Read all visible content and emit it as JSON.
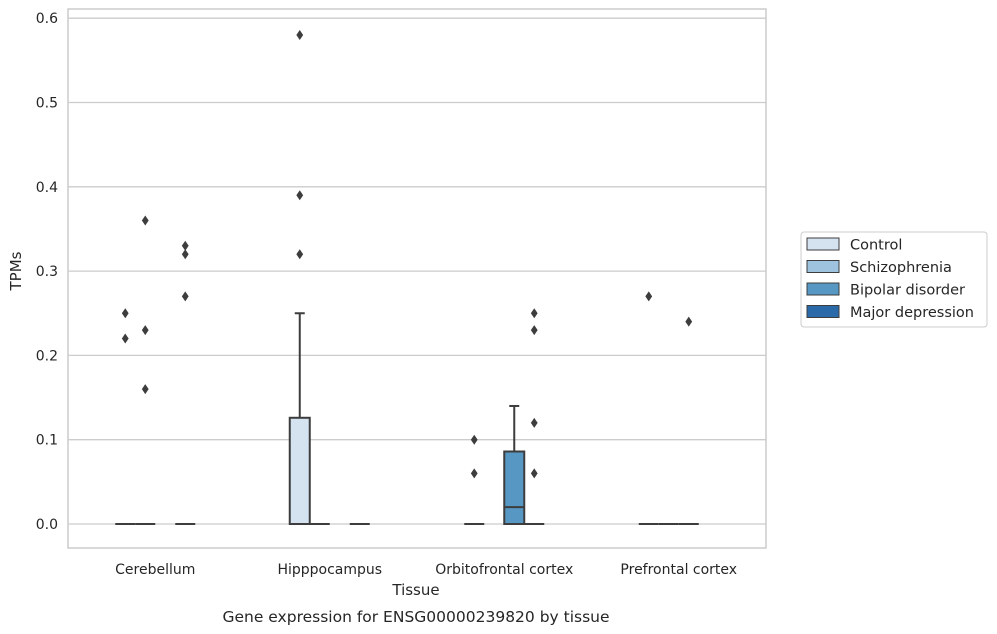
{
  "chart_data": {
    "type": "box",
    "xlabel": "Tissue",
    "ylabel": "TPMs",
    "caption": "Gene expression for ENSG00000239820 by tissue",
    "ylim": [
      -0.029,
      0.61
    ],
    "yticks": [
      "0.0",
      "0.1",
      "0.2",
      "0.3",
      "0.4",
      "0.5",
      "0.6"
    ],
    "grid": "horizontal",
    "legend_position": "right",
    "categories": [
      "Cerebellum",
      "Hipppocampus",
      "Orbitofrontal cortex",
      "Prefrontal cortex"
    ],
    "series": [
      {
        "name": "Control",
        "color": "#d5e3f1"
      },
      {
        "name": "Schizophrenia",
        "color": "#9dc3de"
      },
      {
        "name": "Bipolar disorder",
        "color": "#5697c4"
      },
      {
        "name": "Major depression",
        "color": "#2a6aa8"
      }
    ],
    "boxes": [
      {
        "category": 0,
        "group": 0,
        "q1": 0,
        "median": 0,
        "q3": 0,
        "whisker_low": 0,
        "whisker_high": 0,
        "outliers": [
          0.25,
          0.22
        ]
      },
      {
        "category": 0,
        "group": 1,
        "q1": 0,
        "median": 0,
        "q3": 0,
        "whisker_low": 0,
        "whisker_high": 0,
        "outliers": [
          0.36,
          0.23,
          0.16
        ]
      },
      {
        "category": 0,
        "group": 3,
        "q1": 0,
        "median": 0,
        "q3": 0,
        "whisker_low": 0,
        "whisker_high": 0,
        "outliers": [
          0.33,
          0.32,
          0.27
        ]
      },
      {
        "category": 1,
        "group": 0,
        "q1": 0,
        "median": 0,
        "q3": 0.126,
        "whisker_low": 0,
        "whisker_high": 0.25,
        "outliers": [
          0.58,
          0.39,
          0.32
        ]
      },
      {
        "category": 1,
        "group": 1,
        "q1": 0,
        "median": 0,
        "q3": 0,
        "whisker_low": 0,
        "whisker_high": 0,
        "outliers": []
      },
      {
        "category": 1,
        "group": 3,
        "q1": 0,
        "median": 0,
        "q3": 0,
        "whisker_low": 0,
        "whisker_high": 0,
        "outliers": []
      },
      {
        "category": 2,
        "group": 0,
        "q1": 0,
        "median": 0,
        "q3": 0,
        "whisker_low": 0,
        "whisker_high": 0,
        "outliers": [
          0.1,
          0.06
        ]
      },
      {
        "category": 2,
        "group": 2,
        "q1": 0,
        "median": 0.02,
        "q3": 0.086,
        "whisker_low": 0,
        "whisker_high": 0.14,
        "outliers": []
      },
      {
        "category": 2,
        "group": 3,
        "q1": 0,
        "median": 0,
        "q3": 0,
        "whisker_low": 0,
        "whisker_high": 0,
        "outliers": [
          0.25,
          0.23,
          0.12,
          0.06
        ]
      },
      {
        "category": 3,
        "group": 0,
        "q1": 0,
        "median": 0,
        "q3": 0,
        "whisker_low": 0,
        "whisker_high": 0,
        "outliers": [
          0.27
        ]
      },
      {
        "category": 3,
        "group": 1,
        "q1": 0,
        "median": 0,
        "q3": 0,
        "whisker_low": 0,
        "whisker_high": 0,
        "outliers": []
      },
      {
        "category": 3,
        "group": 2,
        "q1": 0,
        "median": 0,
        "q3": 0,
        "whisker_low": 0,
        "whisker_high": 0,
        "outliers": [
          0.24
        ]
      }
    ]
  }
}
